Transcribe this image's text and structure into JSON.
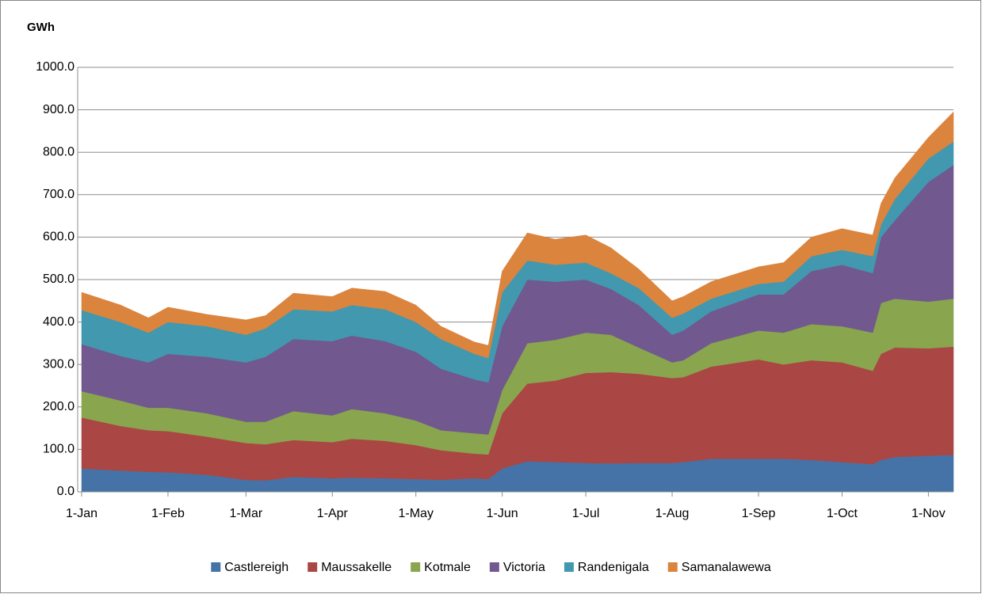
{
  "chart_data": {
    "type": "stacked_area",
    "y_label": "GWh",
    "x": [
      "1-Jan",
      "15-Jan",
      "25-Jan",
      "1-Feb",
      "15-Feb",
      "1-Mar",
      "8-Mar",
      "18-Mar",
      "1-Apr",
      "8-Apr",
      "20-Apr",
      "1-May",
      "10-May",
      "22-May",
      "27-May",
      "1-Jun",
      "10-Jun",
      "20-Jun",
      "1-Jul",
      "10-Jul",
      "20-Jul",
      "1-Aug",
      "5-Aug",
      "15-Aug",
      "1-Sep",
      "10-Sep",
      "20-Sep",
      "1-Oct",
      "12-Oct",
      "15-Oct",
      "20-Oct",
      "1-Nov",
      "10-Nov"
    ],
    "series": [
      {
        "name": "Castlereigh",
        "color": "#4573a7",
        "values": [
          55,
          50,
          47,
          46,
          40,
          28,
          27,
          35,
          32,
          33,
          32,
          30,
          28,
          32,
          30,
          55,
          72,
          70,
          68,
          67,
          68,
          68,
          70,
          78,
          78,
          78,
          75,
          70,
          65,
          75,
          82,
          85,
          87
        ]
      },
      {
        "name": "Maussakelle",
        "color": "#aa4643",
        "values": [
          120,
          105,
          98,
          97,
          90,
          87,
          85,
          87,
          85,
          92,
          88,
          80,
          70,
          58,
          58,
          130,
          183,
          192,
          212,
          215,
          210,
          200,
          200,
          217,
          234,
          222,
          235,
          235,
          220,
          250,
          258,
          253,
          255
        ]
      },
      {
        "name": "Kotmale",
        "color": "#89a54e",
        "values": [
          62,
          60,
          53,
          55,
          55,
          50,
          53,
          68,
          63,
          70,
          65,
          58,
          47,
          48,
          47,
          55,
          95,
          96,
          95,
          88,
          62,
          37,
          40,
          55,
          68,
          75,
          85,
          85,
          90,
          120,
          115,
          110,
          113
        ]
      },
      {
        "name": "Victoria",
        "color": "#71588f",
        "values": [
          111,
          105,
          107,
          127,
          133,
          140,
          153,
          170,
          175,
          173,
          170,
          162,
          145,
          127,
          123,
          150,
          150,
          137,
          125,
          108,
          100,
          65,
          70,
          75,
          85,
          90,
          125,
          145,
          140,
          155,
          185,
          282,
          315
        ]
      },
      {
        "name": "Randenigala",
        "color": "#4198af",
        "values": [
          80,
          80,
          70,
          75,
          72,
          65,
          67,
          70,
          70,
          72,
          75,
          70,
          70,
          60,
          57,
          80,
          45,
          40,
          40,
          37,
          40,
          40,
          40,
          30,
          25,
          30,
          35,
          35,
          40,
          30,
          50,
          55,
          55
        ]
      },
      {
        "name": "Samanalawewa",
        "color": "#db843d",
        "values": [
          42,
          40,
          35,
          35,
          28,
          35,
          30,
          38,
          35,
          40,
          42,
          40,
          30,
          28,
          30,
          50,
          65,
          60,
          65,
          60,
          45,
          40,
          40,
          40,
          40,
          45,
          45,
          50,
          50,
          50,
          50,
          50,
          70
        ]
      }
    ],
    "xlim": [
      "1-Jan",
      "10-Nov"
    ],
    "xticks": [
      "1-Jan",
      "1-Feb",
      "1-Mar",
      "1-Apr",
      "1-May",
      "1-Jun",
      "1-Jul",
      "1-Aug",
      "1-Sep",
      "1-Oct",
      "1-Nov"
    ],
    "ylim": [
      0,
      1000
    ],
    "yticks": [
      {
        "value": 0,
        "label": "0.0"
      },
      {
        "value": 100,
        "label": "100.0"
      },
      {
        "value": 200,
        "label": "200.0"
      },
      {
        "value": 300,
        "label": "300.0"
      },
      {
        "value": 400,
        "label": "400.0"
      },
      {
        "value": 500,
        "label": "500.0"
      },
      {
        "value": 600,
        "label": "600.0"
      },
      {
        "value": 700,
        "label": "700.0"
      },
      {
        "value": 800,
        "label": "800.0"
      },
      {
        "value": 900,
        "label": "900.0"
      },
      {
        "value": 1000,
        "label": "1000.0"
      }
    ],
    "grid": true,
    "legend": "bottom"
  }
}
